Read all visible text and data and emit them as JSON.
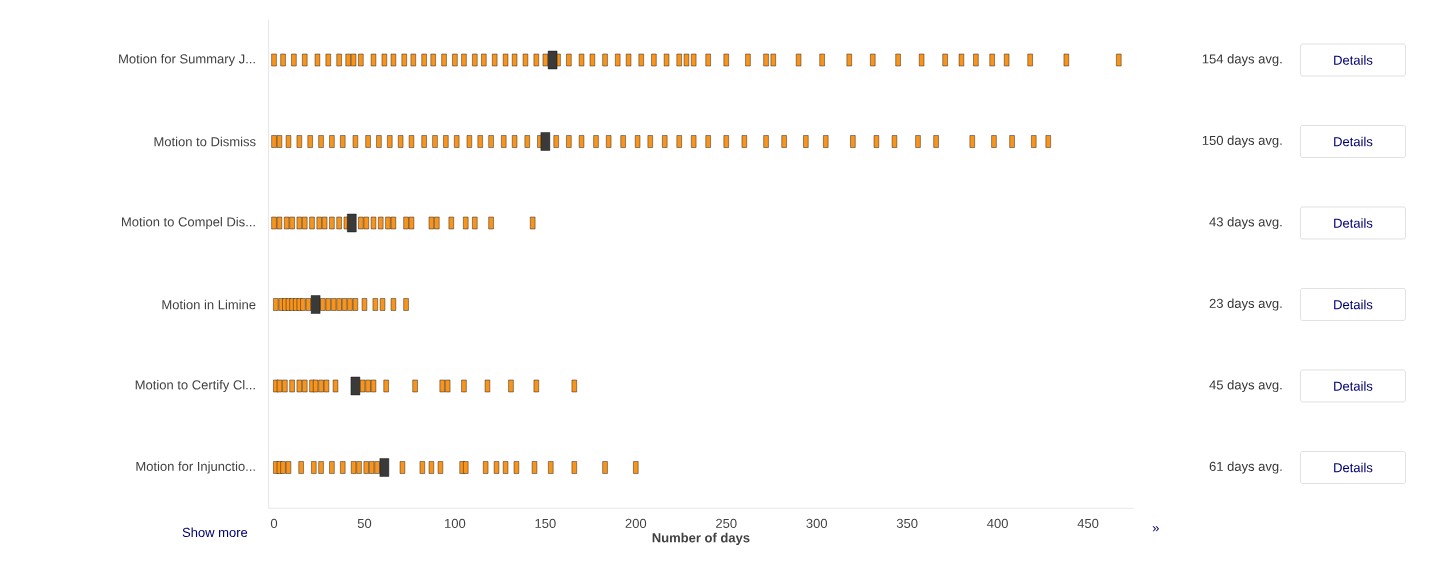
{
  "chart_data": {
    "type": "scatter",
    "orientation": "horizontal",
    "categories": [
      "Motion for Summary J...",
      "Motion to Dismiss",
      "Motion to Compel Dis...",
      "Motion in Limine",
      "Motion to Certify Cl...",
      "Motion for Injunctio..."
    ],
    "xlabel": "Number of days",
    "xlim": [
      -3,
      475
    ],
    "xticks": [
      0,
      50,
      100,
      150,
      200,
      250,
      300,
      350,
      400,
      450
    ],
    "series": [
      {
        "color": "#f7941d",
        "x": [
          "Motion for Summary J...",
          "Motion for Summary J...",
          "Motion for Summary J...",
          "Motion for Summary J...",
          "Motion for Summary J...",
          "Motion for Summary J...",
          "Motion for Summary J...",
          "Motion for Summary J...",
          "Motion for Summary J...",
          "Motion for Summary J...",
          "Motion for Summary J...",
          "Motion for Summary J...",
          "Motion for Summary J...",
          "Motion for Summary J...",
          "Motion for Summary J...",
          "Motion for Summary J...",
          "Motion for Summary J...",
          "Motion for Summary J...",
          "Motion for Summary J...",
          "Motion for Summary J...",
          "Motion for Summary J...",
          "Motion for Summary J...",
          "Motion for Summary J...",
          "Motion for Summary J...",
          "Motion for Summary J...",
          "Motion for Summary J...",
          "Motion for Summary J...",
          "Motion for Summary J...",
          "Motion for Summary J...",
          "Motion for Summary J...",
          "Motion for Summary J...",
          "Motion for Summary J...",
          "Motion for Summary J...",
          "Motion for Summary J...",
          "Motion for Summary J...",
          "Motion for Summary J...",
          "Motion for Summary J...",
          "Motion for Summary J...",
          "Motion for Summary J...",
          "Motion for Summary J...",
          "Motion for Summary J...",
          "Motion for Summary J...",
          "Motion for Summary J...",
          "Motion for Summary J...",
          "Motion for Summary J...",
          "Motion for Summary J...",
          "Motion for Summary J...",
          "Motion for Summary J...",
          "Motion for Summary J...",
          "Motion for Summary J...",
          "Motion for Summary J...",
          "Motion for Summary J...",
          "Motion for Summary J...",
          "Motion for Summary J...",
          "Motion for Summary J...",
          "Motion for Summary J...",
          "Motion for Summary J...",
          "Motion for Summary J...",
          "Motion for Summary J...",
          "Motion for Summary J..."
        ],
        "values": [
          0,
          5,
          11,
          17,
          24,
          30,
          36,
          41,
          44,
          48,
          55,
          61,
          66,
          72,
          77,
          83,
          88,
          94,
          100,
          105,
          111,
          116,
          122,
          128,
          133,
          139,
          145,
          150,
          157,
          163,
          170,
          176,
          183,
          190,
          196,
          203,
          210,
          217,
          224,
          232,
          240,
          250,
          262,
          276,
          290,
          303,
          318,
          331,
          345,
          358,
          371,
          380,
          388,
          397,
          405,
          418,
          438,
          467,
          272,
          228
        ]
      },
      {
        "color": "#f7941d",
        "x": [
          "Motion to Dismiss",
          "Motion to Dismiss",
          "Motion to Dismiss",
          "Motion to Dismiss",
          "Motion to Dismiss",
          "Motion to Dismiss",
          "Motion to Dismiss",
          "Motion to Dismiss",
          "Motion to Dismiss",
          "Motion to Dismiss",
          "Motion to Dismiss",
          "Motion to Dismiss",
          "Motion to Dismiss",
          "Motion to Dismiss",
          "Motion to Dismiss",
          "Motion to Dismiss",
          "Motion to Dismiss",
          "Motion to Dismiss",
          "Motion to Dismiss",
          "Motion to Dismiss",
          "Motion to Dismiss",
          "Motion to Dismiss",
          "Motion to Dismiss",
          "Motion to Dismiss",
          "Motion to Dismiss",
          "Motion to Dismiss",
          "Motion to Dismiss",
          "Motion to Dismiss",
          "Motion to Dismiss",
          "Motion to Dismiss",
          "Motion to Dismiss",
          "Motion to Dismiss",
          "Motion to Dismiss",
          "Motion to Dismiss",
          "Motion to Dismiss",
          "Motion to Dismiss",
          "Motion to Dismiss",
          "Motion to Dismiss",
          "Motion to Dismiss",
          "Motion to Dismiss",
          "Motion to Dismiss",
          "Motion to Dismiss",
          "Motion to Dismiss",
          "Motion to Dismiss",
          "Motion to Dismiss",
          "Motion to Dismiss",
          "Motion to Dismiss",
          "Motion to Dismiss",
          "Motion to Dismiss",
          "Motion to Dismiss",
          "Motion to Dismiss",
          "Motion to Dismiss",
          "Motion to Dismiss"
        ],
        "values": [
          0,
          3,
          8,
          14,
          20,
          26,
          32,
          38,
          45,
          52,
          58,
          64,
          70,
          76,
          83,
          89,
          95,
          101,
          108,
          114,
          120,
          127,
          133,
          140,
          147,
          156,
          163,
          170,
          178,
          185,
          193,
          201,
          208,
          216,
          224,
          232,
          240,
          250,
          260,
          272,
          282,
          294,
          305,
          320,
          333,
          343,
          356,
          366,
          386,
          398,
          408,
          420,
          428
        ]
      },
      {
        "color": "#f7941d",
        "x": [
          "Motion to Compel Dis...",
          "Motion to Compel Dis...",
          "Motion to Compel Dis...",
          "Motion to Compel Dis...",
          "Motion to Compel Dis...",
          "Motion to Compel Dis...",
          "Motion to Compel Dis...",
          "Motion to Compel Dis...",
          "Motion to Compel Dis...",
          "Motion to Compel Dis...",
          "Motion to Compel Dis...",
          "Motion to Compel Dis...",
          "Motion to Compel Dis...",
          "Motion to Compel Dis...",
          "Motion to Compel Dis...",
          "Motion to Compel Dis...",
          "Motion to Compel Dis...",
          "Motion to Compel Dis...",
          "Motion to Compel Dis...",
          "Motion to Compel Dis...",
          "Motion to Compel Dis...",
          "Motion to Compel Dis...",
          "Motion to Compel Dis...",
          "Motion to Compel Dis...",
          "Motion to Compel Dis...",
          "Motion to Compel Dis...",
          "Motion to Compel Dis...",
          "Motion to Compel Dis..."
        ],
        "values": [
          0,
          3,
          7,
          10,
          14,
          17,
          21,
          25,
          28,
          32,
          36,
          40,
          null,
          48,
          51,
          55,
          59,
          63,
          66,
          73,
          76,
          87,
          90,
          98,
          106,
          111,
          120,
          143
        ]
      },
      {
        "color": "#f7941d",
        "x": [
          "Motion in Limine",
          "Motion in Limine",
          "Motion in Limine",
          "Motion in Limine",
          "Motion in Limine",
          "Motion in Limine",
          "Motion in Limine",
          "Motion in Limine",
          "Motion in Limine",
          "Motion in Limine",
          "Motion in Limine",
          "Motion in Limine",
          "Motion in Limine",
          "Motion in Limine",
          "Motion in Limine",
          "Motion in Limine",
          "Motion in Limine",
          "Motion in Limine",
          "Motion in Limine",
          "Motion in Limine",
          "Motion in Limine",
          "Motion in Limine",
          "Motion in Limine"
        ],
        "values": [
          1,
          4,
          6,
          8,
          10,
          12,
          14,
          16,
          19,
          null,
          null,
          27,
          30,
          33,
          36,
          39,
          42,
          45,
          50,
          56,
          60,
          66,
          73
        ]
      },
      {
        "color": "#f7941d",
        "x": [
          "Motion to Certify Cl...",
          "Motion to Certify Cl...",
          "Motion to Certify Cl...",
          "Motion to Certify Cl...",
          "Motion to Certify Cl...",
          "Motion to Certify Cl...",
          "Motion to Certify Cl...",
          "Motion to Certify Cl...",
          "Motion to Certify Cl...",
          "Motion to Certify Cl...",
          "Motion to Certify Cl...",
          "Motion to Certify Cl...",
          "Motion to Certify Cl...",
          "Motion to Certify Cl...",
          "Motion to Certify Cl...",
          "Motion to Certify Cl...",
          "Motion to Certify Cl...",
          "Motion to Certify Cl...",
          "Motion to Certify Cl...",
          "Motion to Certify Cl...",
          "Motion to Certify Cl...",
          "Motion to Certify Cl...",
          "Motion to Certify Cl..."
        ],
        "values": [
          1,
          3,
          6,
          10,
          14,
          17,
          21,
          23,
          26,
          29,
          34,
          49,
          52,
          55,
          62,
          78,
          93,
          96,
          105,
          118,
          131,
          145,
          166
        ]
      },
      {
        "color": "#f7941d",
        "x": [
          "Motion for Injunctio...",
          "Motion for Injunctio...",
          "Motion for Injunctio...",
          "Motion for Injunctio...",
          "Motion for Injunctio...",
          "Motion for Injunctio...",
          "Motion for Injunctio...",
          "Motion for Injunctio...",
          "Motion for Injunctio...",
          "Motion for Injunctio...",
          "Motion for Injunctio...",
          "Motion for Injunctio...",
          "Motion for Injunctio...",
          "Motion for Injunctio...",
          "Motion for Injunctio...",
          "Motion for Injunctio...",
          "Motion for Injunctio...",
          "Motion for Injunctio...",
          "Motion for Injunctio...",
          "Motion for Injunctio...",
          "Motion for Injunctio...",
          "Motion for Injunctio...",
          "Motion for Injunctio...",
          "Motion for Injunctio...",
          "Motion for Injunctio...",
          "Motion for Injunctio...",
          "Motion for Injunctio...",
          "Motion for Injunctio...",
          "Motion for Injunctio...",
          "Motion for Injunctio..."
        ],
        "values": [
          1,
          3,
          5,
          8,
          15,
          22,
          26,
          32,
          38,
          44,
          47,
          51,
          54,
          57,
          null,
          71,
          82,
          87,
          92,
          104,
          106,
          117,
          123,
          128,
          134,
          144,
          153,
          166,
          183,
          200
        ]
      },
      {
        "color": "#3a3a3a",
        "x": [
          "Motion for Summary J...",
          "Motion to Dismiss",
          "Motion to Compel Dis...",
          "Motion in Limine",
          "Motion to Certify Cl...",
          "Motion for Injunctio..."
        ],
        "values": [
          154,
          150,
          43,
          23,
          45,
          61
        ]
      }
    ],
    "annotations": [
      "154 days avg.",
      "Details",
      "150 days avg.",
      "Details",
      "43 days avg.",
      "Details",
      "23 days avg.",
      "Details",
      "45 days avg.",
      "Details",
      "61 days avg.",
      "Details",
      "Show more",
      "»"
    ]
  }
}
